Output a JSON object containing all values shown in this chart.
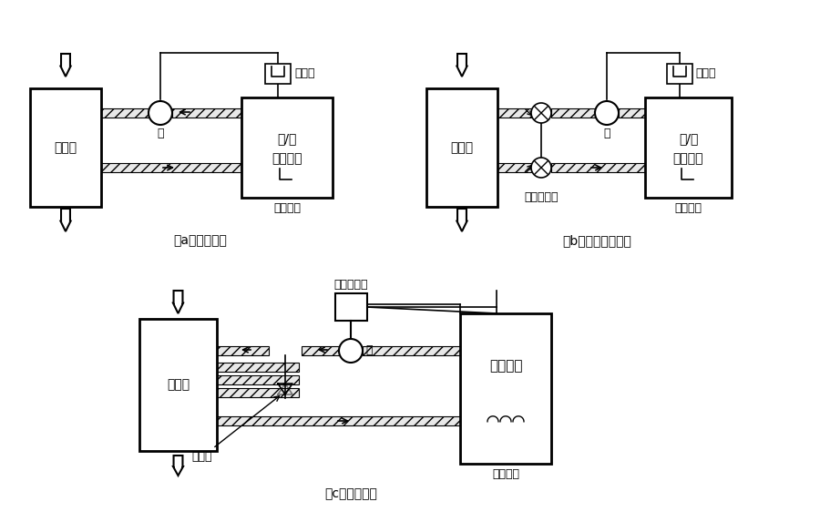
{
  "bg_color": "#ffffff",
  "title_a": "（a）间断控制",
  "title_b": "（b）断续旁通控制",
  "title_c": "（c）连续控制",
  "label_heatex": "换热器",
  "label_switch_a": "开/关\n热敏器件",
  "label_switch_b": "开/关\n热敏器件",
  "label_sensor_c": "敏感器件",
  "label_relay_a": "继电器",
  "label_relay_b": "继电器",
  "label_prop_valve": "比例控制阀",
  "label_pump_a": "泵",
  "label_pump_b": "泵",
  "label_pump_c": "泵",
  "label_sys_a": "电子系统",
  "label_sys_b": "电子系统",
  "label_sys_c": "电子系统",
  "label_valve_b": "复式电磁阀",
  "label_valve_c": "调节阀",
  "font_size": 9
}
